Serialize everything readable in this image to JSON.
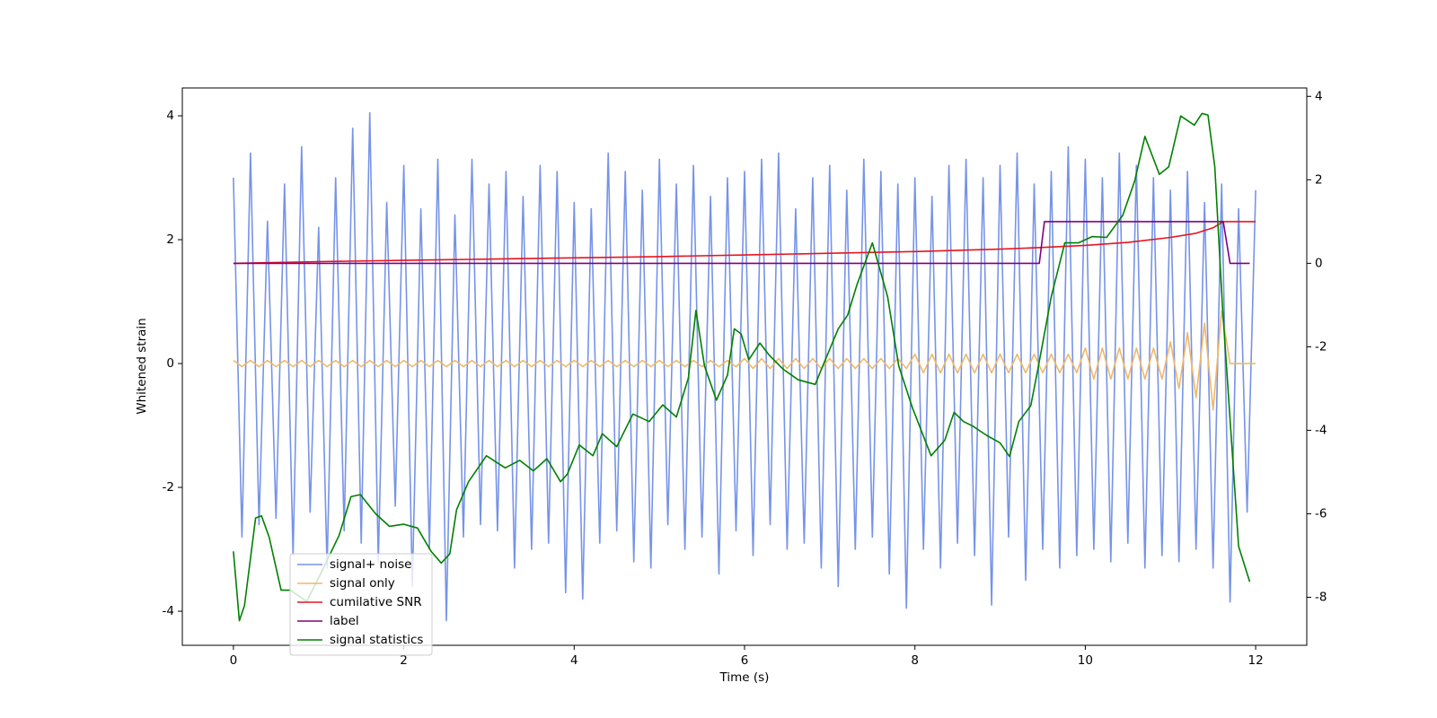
{
  "chart_data": {
    "type": "line",
    "xlabel": "Time (s)",
    "ylabel": "Whitened strain",
    "xlim": [
      -0.6,
      12.6
    ],
    "xticks": [
      0,
      2,
      4,
      6,
      8,
      10,
      12
    ],
    "ylim": [
      -4.55,
      4.45
    ],
    "yticks": [
      -4,
      -2,
      0,
      2,
      4
    ],
    "y2lim": [
      -9.15,
      4.2
    ],
    "y2ticks": [
      -8,
      -6,
      -4,
      -2,
      0,
      2,
      4
    ],
    "legend": "lower left",
    "x": [
      0,
      0.1,
      0.2,
      0.3,
      0.4,
      0.5,
      0.6,
      0.7,
      0.8,
      0.9,
      1,
      1.1,
      1.2,
      1.3,
      1.4,
      1.5,
      1.6,
      1.7,
      1.8,
      1.9,
      2,
      2.1,
      2.2,
      2.3,
      2.4,
      2.5,
      2.6,
      2.7,
      2.8,
      2.9,
      3,
      3.1,
      3.2,
      3.3,
      3.4,
      3.5,
      3.6,
      3.7,
      3.8,
      3.9,
      4,
      4.1,
      4.2,
      4.3,
      4.4,
      4.5,
      4.6,
      4.7,
      4.8,
      4.9,
      5,
      5.1,
      5.2,
      5.3,
      5.4,
      5.5,
      5.6,
      5.7,
      5.8,
      5.9,
      6,
      6.1,
      6.2,
      6.3,
      6.4,
      6.5,
      6.6,
      6.7,
      6.8,
      6.9,
      7,
      7.1,
      7.2,
      7.3,
      7.4,
      7.5,
      7.6,
      7.7,
      7.8,
      7.9,
      8,
      8.1,
      8.2,
      8.3,
      8.4,
      8.5,
      8.6,
      8.7,
      8.8,
      8.9,
      9,
      9.1,
      9.2,
      9.3,
      9.4,
      9.5,
      9.6,
      9.7,
      9.8,
      9.9,
      10,
      10.1,
      10.2,
      10.3,
      10.4,
      10.5,
      10.6,
      10.7,
      10.8,
      10.9,
      11,
      11.1,
      11.2,
      11.3,
      11.4,
      11.5,
      11.6,
      11.7,
      11.8,
      11.9,
      12
    ],
    "series": [
      {
        "name": "signal+ noise",
        "color": "#7693e8",
        "values": [
          3.0,
          -2.8,
          3.4,
          -2.6,
          2.3,
          -2.5,
          2.9,
          -3.1,
          3.5,
          -2.4,
          2.2,
          -3.3,
          3.0,
          -2.7,
          3.8,
          -2.9,
          4.05,
          -3.2,
          2.6,
          -2.3,
          3.2,
          -3.6,
          2.5,
          -3.0,
          3.3,
          -4.15,
          2.4,
          -2.8,
          3.3,
          -2.6,
          2.9,
          -2.7,
          3.1,
          -3.3,
          2.7,
          -3.0,
          3.2,
          -2.9,
          3.1,
          -3.7,
          2.6,
          -3.8,
          2.5,
          -2.9,
          3.4,
          -2.7,
          3.1,
          -3.2,
          2.8,
          -3.3,
          3.3,
          -2.6,
          2.9,
          -3.0,
          3.2,
          -2.8,
          2.7,
          -3.4,
          3.0,
          -2.7,
          3.1,
          -3.1,
          3.3,
          -2.6,
          3.4,
          -3.0,
          2.5,
          -2.9,
          3.0,
          -3.3,
          3.2,
          -3.6,
          2.8,
          -3.0,
          3.3,
          -2.8,
          3.1,
          -3.4,
          2.9,
          -3.95,
          3.0,
          -3.0,
          2.7,
          -3.3,
          3.2,
          -2.9,
          3.3,
          -3.1,
          3.0,
          -3.9,
          3.2,
          -2.8,
          3.4,
          -3.5,
          2.9,
          -3.0,
          3.1,
          -3.3,
          3.5,
          -3.1,
          3.3,
          -3.0,
          3.0,
          -3.2,
          3.4,
          -2.9,
          3.2,
          -3.3,
          3.0,
          -3.1,
          2.8,
          -3.2,
          3.1,
          -3.0,
          2.6,
          -3.3,
          2.9,
          -3.85,
          2.5,
          -2.4,
          2.8
        ]
      },
      {
        "name": "signal only",
        "color": "#f0b868",
        "values": [
          0.05,
          -0.05,
          0.05,
          -0.05,
          0.05,
          -0.05,
          0.05,
          -0.05,
          0.05,
          -0.05,
          0.05,
          -0.05,
          0.05,
          -0.05,
          0.05,
          -0.05,
          0.05,
          -0.05,
          0.05,
          -0.05,
          0.05,
          -0.05,
          0.05,
          -0.05,
          0.05,
          -0.05,
          0.05,
          -0.05,
          0.05,
          -0.05,
          0.05,
          -0.05,
          0.05,
          -0.05,
          0.05,
          -0.05,
          0.05,
          -0.05,
          0.05,
          -0.05,
          0.05,
          -0.05,
          0.05,
          -0.05,
          0.05,
          -0.05,
          0.05,
          -0.05,
          0.05,
          -0.05,
          0.05,
          -0.05,
          0.05,
          -0.05,
          0.05,
          -0.05,
          0.05,
          -0.05,
          0.05,
          -0.05,
          0.08,
          -0.08,
          0.08,
          -0.08,
          0.08,
          -0.08,
          0.08,
          -0.08,
          0.08,
          -0.08,
          0.08,
          -0.08,
          0.08,
          -0.08,
          0.08,
          -0.08,
          0.08,
          -0.08,
          0.08,
          -0.08,
          0.15,
          -0.15,
          0.15,
          -0.15,
          0.15,
          -0.15,
          0.15,
          -0.15,
          0.15,
          -0.15,
          0.15,
          -0.15,
          0.15,
          -0.15,
          0.15,
          -0.15,
          0.15,
          -0.15,
          0.15,
          -0.15,
          0.25,
          -0.25,
          0.25,
          -0.25,
          0.25,
          -0.25,
          0.25,
          -0.25,
          0.25,
          -0.25,
          0.35,
          -0.4,
          0.5,
          -0.55,
          0.65,
          -0.75,
          0.85,
          0,
          0,
          0,
          0
        ]
      },
      {
        "name": "cumilative SNR",
        "color": "#e8141e",
        "axis": "y2",
        "x": [
          0,
          1,
          2,
          3,
          4,
          5,
          6,
          7,
          8,
          9,
          9.5,
          10,
          10.5,
          11,
          11.3,
          11.5,
          11.62,
          12
        ],
        "values": [
          0,
          0.04,
          0.07,
          0.1,
          0.13,
          0.16,
          0.2,
          0.24,
          0.28,
          0.34,
          0.38,
          0.43,
          0.5,
          0.62,
          0.72,
          0.85,
          1.0,
          1.0
        ]
      },
      {
        "name": "label",
        "color": "#800080",
        "axis": "y2",
        "x": [
          0,
          9.46,
          9.52,
          11.62,
          11.7,
          11.93
        ],
        "values": [
          0,
          0,
          1,
          1,
          0,
          0
        ]
      },
      {
        "name": "signal statistics",
        "color": "#008000",
        "axis": "y2",
        "x": [
          0,
          0.07,
          0.13,
          0.26,
          0.33,
          0.42,
          0.56,
          0.67,
          0.86,
          1.02,
          1.24,
          1.38,
          1.49,
          1.67,
          1.83,
          2.0,
          2.16,
          2.32,
          2.44,
          2.54,
          2.62,
          2.76,
          2.97,
          3.19,
          3.36,
          3.52,
          3.68,
          3.84,
          3.92,
          4.06,
          4.22,
          4.33,
          4.5,
          4.69,
          4.88,
          5.04,
          5.2,
          5.34,
          5.43,
          5.53,
          5.67,
          5.8,
          5.88,
          5.96,
          6.05,
          6.18,
          6.29,
          6.45,
          6.63,
          6.83,
          6.94,
          7.1,
          7.21,
          7.32,
          7.5,
          7.68,
          7.81,
          7.97,
          8.19,
          8.35,
          8.46,
          8.57,
          8.68,
          8.84,
          9.0,
          9.11,
          9.22,
          9.36,
          9.44,
          9.6,
          9.76,
          9.92,
          10.08,
          10.25,
          10.44,
          10.58,
          10.7,
          10.87,
          10.98,
          11.12,
          11.28,
          11.37,
          11.44,
          11.52,
          11.61,
          11.72,
          11.8,
          11.93
        ],
        "values": [
          -6.9,
          -8.56,
          -8.2,
          -6.1,
          -6.05,
          -6.56,
          -7.83,
          -7.83,
          -8.1,
          -7.45,
          -6.52,
          -5.59,
          -5.54,
          -6.0,
          -6.3,
          -6.25,
          -6.34,
          -6.9,
          -7.18,
          -6.96,
          -5.9,
          -5.23,
          -4.61,
          -4.9,
          -4.72,
          -4.97,
          -4.68,
          -5.23,
          -5.05,
          -4.35,
          -4.61,
          -4.08,
          -4.39,
          -3.61,
          -3.79,
          -3.39,
          -3.68,
          -2.75,
          -1.13,
          -2.46,
          -3.28,
          -2.68,
          -1.57,
          -1.69,
          -2.31,
          -1.91,
          -2.2,
          -2.53,
          -2.79,
          -2.9,
          -2.35,
          -1.57,
          -1.24,
          -0.51,
          0.49,
          -0.8,
          -2.46,
          -3.46,
          -4.61,
          -4.24,
          -3.57,
          -3.79,
          -3.9,
          -4.12,
          -4.3,
          -4.63,
          -3.79,
          -3.41,
          -2.57,
          -0.8,
          0.49,
          0.49,
          0.64,
          0.62,
          1.15,
          1.97,
          3.04,
          2.13,
          2.31,
          3.53,
          3.31,
          3.59,
          3.55,
          2.31,
          -1.02,
          -4.35,
          -6.78,
          -7.63
        ]
      }
    ]
  }
}
